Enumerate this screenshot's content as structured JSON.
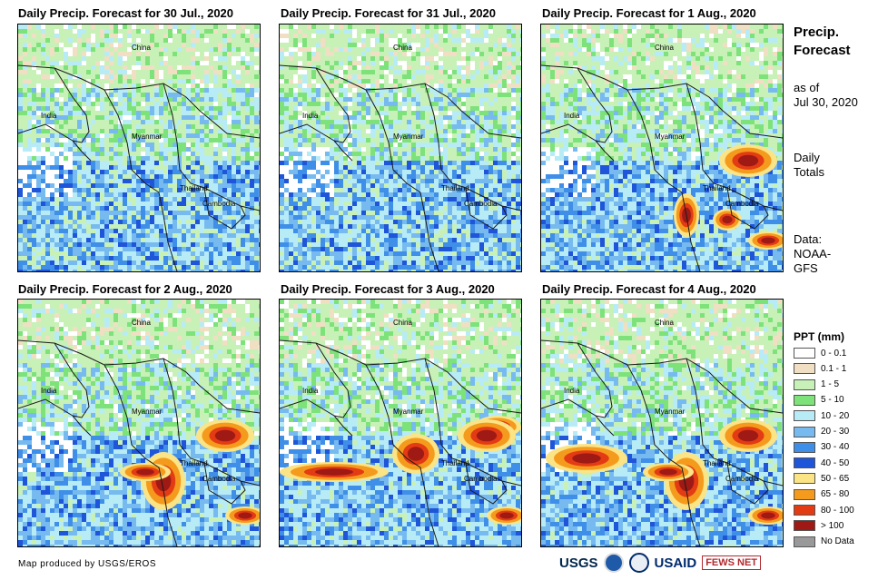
{
  "panels": [
    {
      "title": "Daily Precip. Forecast for 30 Jul., 2020",
      "intensity": 0.2,
      "storms": []
    },
    {
      "title": "Daily Precip. Forecast for 31 Jul., 2020",
      "intensity": 0.25,
      "storms": []
    },
    {
      "title": "Daily Precip. Forecast for 1 Aug., 2020",
      "intensity": 0.45,
      "storms": [
        "east-vietnam",
        "west-coast"
      ]
    },
    {
      "title": "Daily Precip. Forecast for 2 Aug., 2020",
      "intensity": 0.6,
      "storms": [
        "andaman",
        "east-vietnam"
      ]
    },
    {
      "title": "Daily Precip. Forecast for 3 Aug., 2020",
      "intensity": 0.65,
      "storms": [
        "bay-of-bengal-band",
        "east-vietnam"
      ]
    },
    {
      "title": "Daily Precip. Forecast for 4 Aug., 2020",
      "intensity": 0.7,
      "storms": [
        "bay-of-bengal-west",
        "andaman",
        "east-vietnam"
      ]
    }
  ],
  "map_labels": {
    "china": "China",
    "india": "India",
    "myanmar": "Myanmar",
    "thailand": "Thailand",
    "cambodia": "Cambodia"
  },
  "sidebar": {
    "title_line1": "Precip.",
    "title_line2": "Forecast",
    "asof_line1": "as of",
    "asof_line2": "Jul 30, 2020",
    "daily_line1": "Daily",
    "daily_line2": "Totals",
    "source_line1": "Data:",
    "source_line2": "NOAA-",
    "source_line3": "GFS"
  },
  "legend": {
    "title": "PPT (mm)",
    "items": [
      {
        "label": "0 - 0.1",
        "color": "#ffffff"
      },
      {
        "label": "0.1 - 1",
        "color": "#f1dfc3"
      },
      {
        "label": "1 - 5",
        "color": "#c7f1b7"
      },
      {
        "label": "5 - 10",
        "color": "#7ee27a"
      },
      {
        "label": "10 - 20",
        "color": "#b7ecf7"
      },
      {
        "label": "20 - 30",
        "color": "#77baf0"
      },
      {
        "label": "30 - 40",
        "color": "#3f8ee7"
      },
      {
        "label": "40 - 50",
        "color": "#1f55d8"
      },
      {
        "label": "50 - 65",
        "color": "#fbe486"
      },
      {
        "label": "65 - 80",
        "color": "#f49b1d"
      },
      {
        "label": "80 - 100",
        "color": "#e33b14"
      },
      {
        "label": "> 100",
        "color": "#9f1a15"
      },
      {
        "label": "No Data",
        "color": "#999999"
      }
    ]
  },
  "footer": {
    "credit": "Map produced by USGS/EROS",
    "usgs": "USGS",
    "usaid": "USAID",
    "fews": "FEWS NET"
  }
}
